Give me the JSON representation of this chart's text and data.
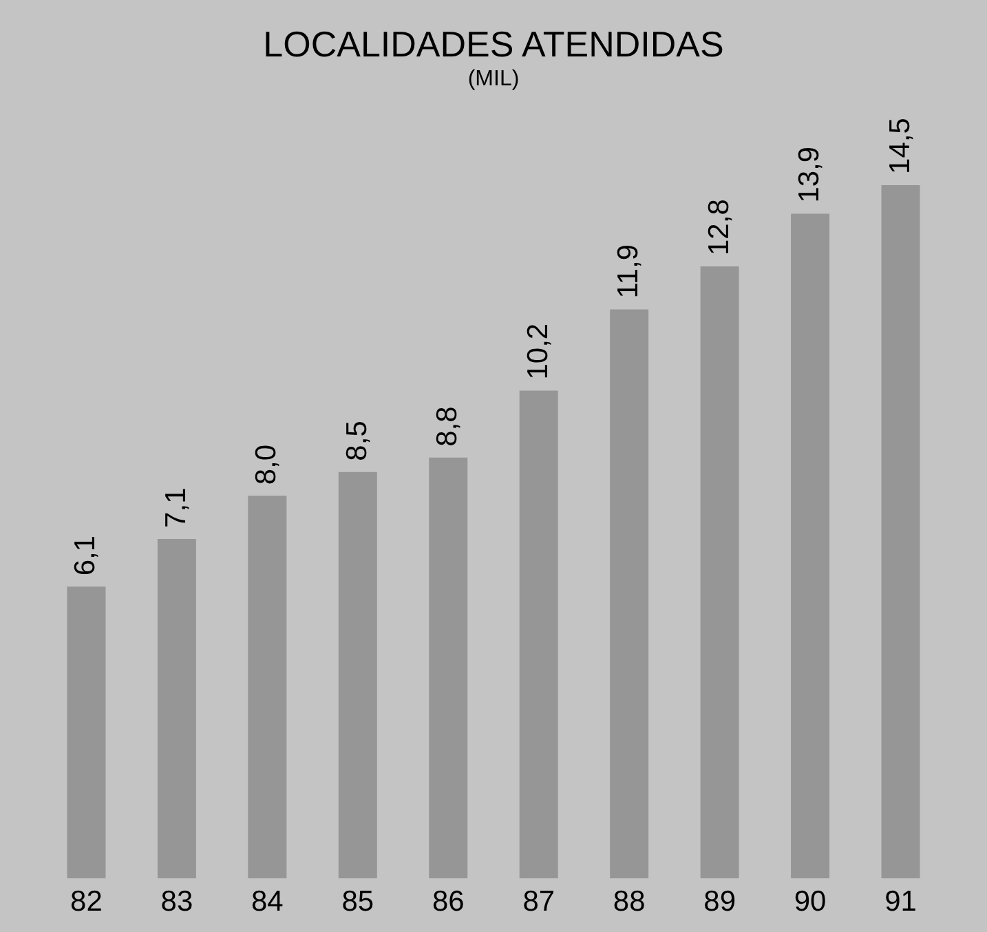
{
  "chart_data": {
    "type": "bar",
    "title": "LOCALIDADES ATENDIDAS",
    "subtitle": "(MIL)",
    "categories": [
      "82",
      "83",
      "84",
      "85",
      "86",
      "87",
      "88",
      "89",
      "90",
      "91"
    ],
    "values": [
      6.1,
      7.1,
      8.0,
      8.5,
      8.8,
      10.2,
      11.9,
      12.8,
      13.9,
      14.5
    ],
    "value_labels": [
      "6,1",
      "7,1",
      "8,0",
      "8,5",
      "8,8",
      "10,2",
      "11,9",
      "12,8",
      "13,9",
      "14,5"
    ],
    "color": "#969696",
    "tick_labels": "x",
    "grid": false
  }
}
